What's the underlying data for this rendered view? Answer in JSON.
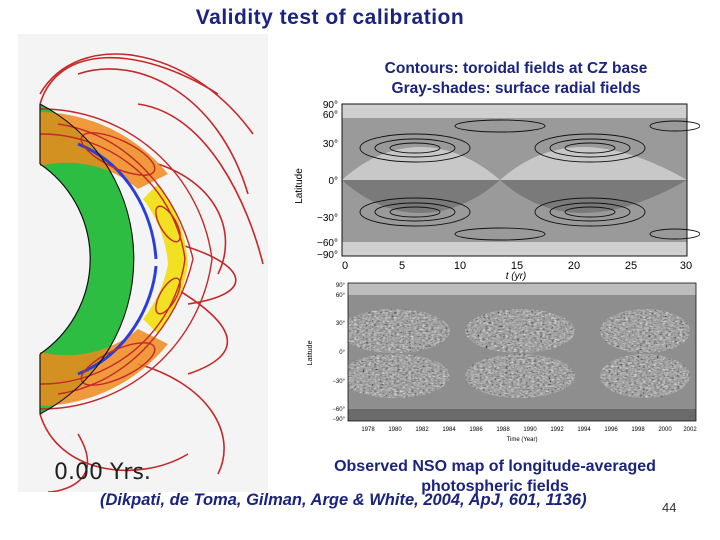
{
  "slide": {
    "title": "Validity test of calibration",
    "caption_top": "Contours: toroidal fields at CZ base Gray-shades: surface radial fields",
    "caption_bottom": "Observed NSO map of longitude-averaged photospheric fields",
    "citation": "(Dikpati, de Toma, Gilman, Arge & White, 2004, ApJ, 601, 1136)",
    "page_number": "44",
    "timestamp": "0.00  Yrs."
  },
  "model_plot": {
    "ylabel": "Latitude",
    "xlabel": "t (yr)",
    "y_ticks": [
      "90°",
      "60°",
      "30°",
      "0°",
      "−30°",
      "−60°",
      "−90°"
    ],
    "x_ticks": [
      "0",
      "5",
      "10",
      "15",
      "20",
      "25",
      "30"
    ]
  },
  "observed_plot": {
    "ylabel": "Latitude",
    "xlabel": "Time (Year)",
    "y_ticks": [
      "90°",
      "60°",
      "30°",
      "0°",
      "−30°",
      "−60°",
      "−90°"
    ],
    "x_ticks": [
      "1978",
      "1980",
      "1982",
      "1984",
      "1986",
      "1988",
      "1990",
      "1992",
      "1994",
      "1996",
      "1998",
      "2000",
      "2002"
    ]
  },
  "colors": {
    "text_blue": "#1a237e",
    "field_red": "#c62828",
    "sim_green": "#2ebd43",
    "sim_yellow": "#f2e022",
    "sim_orange": "#f08a1c",
    "sim_blue": "#2a3fd8"
  }
}
